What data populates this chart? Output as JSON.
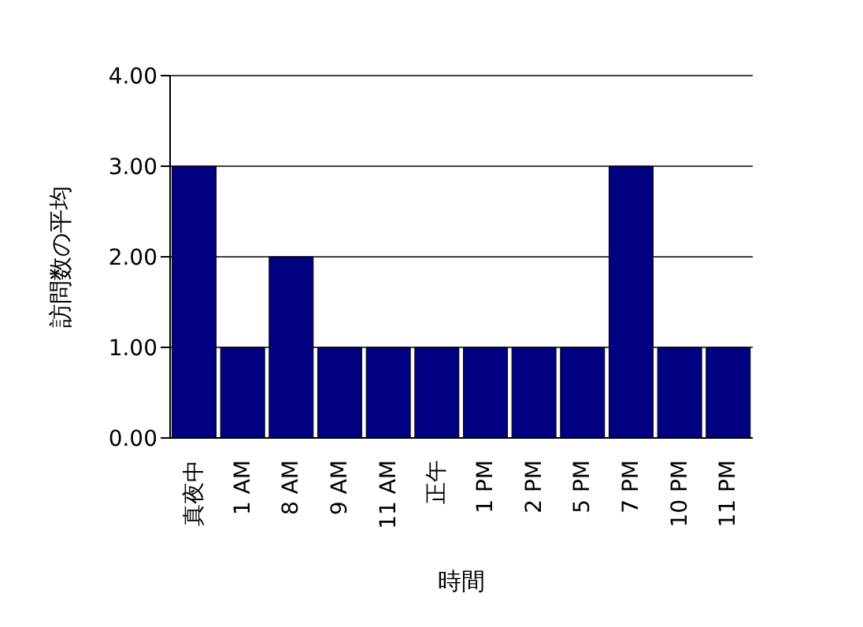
{
  "chart_data": {
    "type": "bar",
    "xlabel": "時間",
    "ylabel": "訪問数の平均",
    "categories": [
      "真夜中",
      "1 AM",
      "8 AM",
      "9 AM",
      "11 AM",
      "正午",
      "1 PM",
      "2 PM",
      "5 PM",
      "7 PM",
      "10 PM",
      "11 PM"
    ],
    "values": [
      3,
      1,
      2,
      1,
      1,
      1,
      1,
      1,
      1,
      3,
      1,
      1
    ],
    "color": "#000080",
    "ylim": [
      0,
      4
    ],
    "yticks": [
      {
        "value": 0,
        "label": "0.00"
      },
      {
        "value": 1,
        "label": "1.00"
      },
      {
        "value": 2,
        "label": "2.00"
      },
      {
        "value": 3,
        "label": "3.00"
      },
      {
        "value": 4,
        "label": "4.00"
      }
    ],
    "grid": "y"
  }
}
